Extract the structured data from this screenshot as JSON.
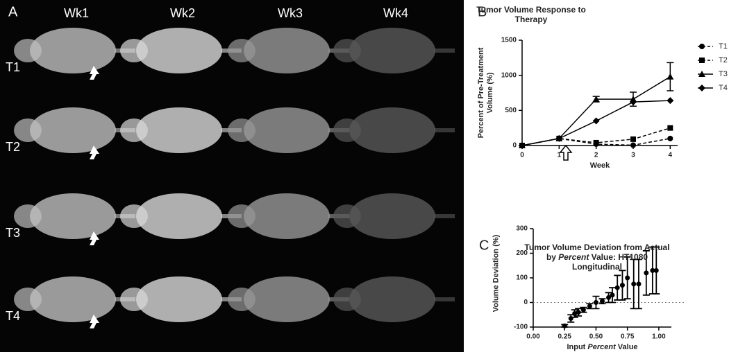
{
  "image_panel": {
    "label": "A",
    "columns": [
      "Wk1",
      "Wk2",
      "Wk3",
      "Wk4"
    ],
    "rows": [
      "T1",
      "T2",
      "T3",
      "T4"
    ]
  },
  "chart_data": [
    {
      "type": "line",
      "panel_label": "B",
      "title": "Tumor Volume Response to Therapy",
      "xlabel": "Week",
      "ylabel": "Percent of Pre-Treatment Volume (%)",
      "x": [
        0,
        1,
        2,
        3,
        4
      ],
      "xlim": [
        0,
        4.2
      ],
      "xticks": [
        0,
        1,
        2,
        3,
        4
      ],
      "ylim": [
        0,
        1500
      ],
      "yticks": [
        0,
        500,
        1000,
        1500
      ],
      "series": [
        {
          "name": "T1",
          "color": "#000000",
          "marker": "circle",
          "dashed": true,
          "values": [
            0,
            100,
            20,
            5,
            100
          ]
        },
        {
          "name": "T2",
          "color": "#000000",
          "marker": "square",
          "dashed": true,
          "values": [
            0,
            100,
            40,
            90,
            250
          ]
        },
        {
          "name": "T3",
          "color": "#000000",
          "marker": "triangle",
          "dashed": false,
          "values": [
            0,
            100,
            660,
            660,
            980
          ],
          "errors": [
            null,
            null,
            40,
            100,
            200
          ]
        },
        {
          "name": "T4",
          "color": "#000000",
          "marker": "diamond",
          "dashed": false,
          "values": [
            0,
            100,
            350,
            620,
            640
          ]
        }
      ]
    },
    {
      "type": "scatter",
      "panel_label": "C",
      "title": "Tumor Volume Deviation from Actual by Percent Value: HT1080 Longitudinal",
      "xlabel": [
        "Input ",
        "Percent",
        " Value"
      ],
      "ylabel": "Volume Deviation (%)",
      "x": [
        0.25,
        0.3,
        0.33,
        0.36,
        0.4,
        0.45,
        0.5,
        0.55,
        0.6,
        0.63,
        0.67,
        0.71,
        0.75,
        0.8,
        0.84,
        0.9,
        0.95,
        0.98
      ],
      "values": [
        -95,
        -65,
        -45,
        -40,
        -30,
        -15,
        0,
        5,
        20,
        30,
        60,
        70,
        100,
        75,
        75,
        120,
        130,
        130
      ],
      "errors": [
        5,
        15,
        15,
        15,
        10,
        10,
        25,
        10,
        20,
        30,
        50,
        60,
        85,
        100,
        100,
        90,
        95,
        95
      ],
      "color": "#000000",
      "xlim": [
        0,
        1.1
      ],
      "xticks": [
        {
          "value": 0,
          "label": "0.00"
        },
        {
          "value": 0.25,
          "label": "0.25"
        },
        {
          "value": 0.5,
          "label": "0.50"
        },
        {
          "value": 0.75,
          "label": "0.75"
        },
        {
          "value": 1,
          "label": "1.00"
        }
      ],
      "ylim": [
        -100,
        300
      ],
      "yticks": [
        -100,
        0,
        100,
        200,
        300
      ],
      "hline": 0
    }
  ]
}
